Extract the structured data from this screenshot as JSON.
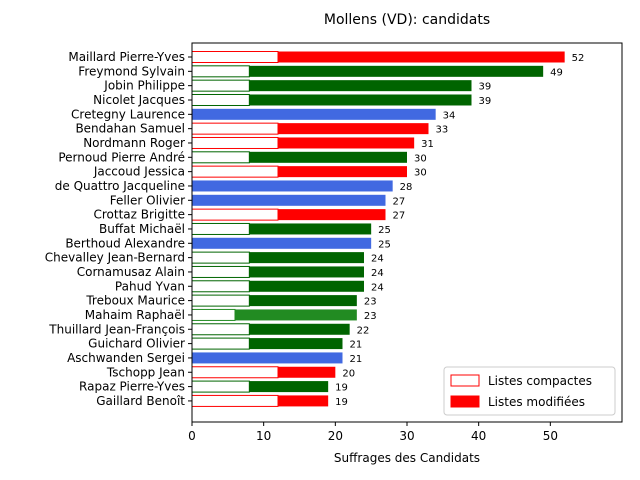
{
  "chart_data": {
    "type": "bar",
    "orientation": "horizontal",
    "title": "Mollens (VD): candidats",
    "xlabel": "Suffrages des Candidats",
    "ylabel": "",
    "xlim": [
      0,
      60
    ],
    "xticks": [
      0,
      10,
      20,
      30,
      40,
      50
    ],
    "grid": false,
    "legend_position": "bottom-right",
    "legend": [
      {
        "label": "Listes compactes",
        "style": "outline",
        "color": "#ff0000"
      },
      {
        "label": "Listes modifiées",
        "style": "filled",
        "color": "#ff0000"
      }
    ],
    "candidates": [
      {
        "name": "Maillard Pierre-Yves",
        "total": 52,
        "compact": 12,
        "color": "#ff0000"
      },
      {
        "name": "Freymond Sylvain",
        "total": 49,
        "compact": 8,
        "color": "#006400"
      },
      {
        "name": "Jobin Philippe",
        "total": 39,
        "compact": 8,
        "color": "#006400"
      },
      {
        "name": "Nicolet Jacques",
        "total": 39,
        "compact": 8,
        "color": "#006400"
      },
      {
        "name": "Cretegny Laurence",
        "total": 34,
        "compact": 0,
        "color": "#4169e1"
      },
      {
        "name": "Bendahan Samuel",
        "total": 33,
        "compact": 12,
        "color": "#ff0000"
      },
      {
        "name": "Nordmann Roger",
        "total": 31,
        "compact": 12,
        "color": "#ff0000"
      },
      {
        "name": "Pernoud Pierre André",
        "total": 30,
        "compact": 8,
        "color": "#006400"
      },
      {
        "name": "Jaccoud Jessica",
        "total": 30,
        "compact": 12,
        "color": "#ff0000"
      },
      {
        "name": "de Quattro Jacqueline",
        "total": 28,
        "compact": 0,
        "color": "#4169e1"
      },
      {
        "name": "Feller Olivier",
        "total": 27,
        "compact": 0,
        "color": "#4169e1"
      },
      {
        "name": "Crottaz Brigitte",
        "total": 27,
        "compact": 12,
        "color": "#ff0000"
      },
      {
        "name": "Buffat Michaël",
        "total": 25,
        "compact": 8,
        "color": "#006400"
      },
      {
        "name": "Berthoud Alexandre",
        "total": 25,
        "compact": 0,
        "color": "#4169e1"
      },
      {
        "name": "Chevalley Jean-Bernard",
        "total": 24,
        "compact": 8,
        "color": "#006400"
      },
      {
        "name": "Cornamusaz Alain",
        "total": 24,
        "compact": 8,
        "color": "#006400"
      },
      {
        "name": "Pahud Yvan",
        "total": 24,
        "compact": 8,
        "color": "#006400"
      },
      {
        "name": "Treboux Maurice",
        "total": 23,
        "compact": 8,
        "color": "#006400"
      },
      {
        "name": "Mahaim Raphaël",
        "total": 23,
        "compact": 6,
        "color": "#228b22"
      },
      {
        "name": "Thuillard Jean-François",
        "total": 22,
        "compact": 8,
        "color": "#006400"
      },
      {
        "name": "Guichard Olivier",
        "total": 21,
        "compact": 8,
        "color": "#006400"
      },
      {
        "name": "Aschwanden Sergei",
        "total": 21,
        "compact": 0,
        "color": "#4169e1"
      },
      {
        "name": "Tschopp Jean",
        "total": 20,
        "compact": 12,
        "color": "#ff0000"
      },
      {
        "name": "Rapaz Pierre-Yves",
        "total": 19,
        "compact": 8,
        "color": "#006400"
      },
      {
        "name": "Gaillard Benoît",
        "total": 19,
        "compact": 12,
        "color": "#ff0000"
      }
    ]
  }
}
